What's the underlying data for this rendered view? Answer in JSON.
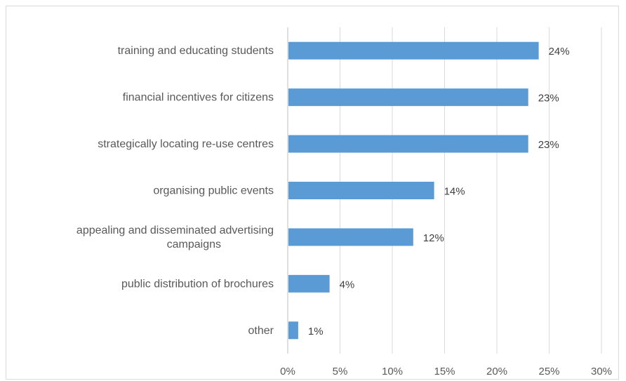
{
  "chart_data": {
    "type": "bar",
    "orientation": "horizontal",
    "title": "",
    "xlabel": "",
    "ylabel": "",
    "categories": [
      "training and educating students",
      "financial incentives for citizens",
      "strategically locating re-use centres",
      "organising public events",
      "appealing and disseminated advertising campaigns",
      "public distribution of brochures",
      "other"
    ],
    "category_lines": [
      [
        "training and educating students"
      ],
      [
        "financial incentives for citizens"
      ],
      [
        "strategically locating re-use centres"
      ],
      [
        "organising public events"
      ],
      [
        "appealing and disseminated advertising",
        "campaigns"
      ],
      [
        "public distribution of brochures"
      ],
      [
        "other"
      ]
    ],
    "values": [
      24,
      23,
      23,
      14,
      12,
      4,
      1
    ],
    "data_labels": [
      "24%",
      "23%",
      "23%",
      "14%",
      "12%",
      "4%",
      "1%"
    ],
    "xlim": [
      0,
      30
    ],
    "xticks": [
      0,
      5,
      10,
      15,
      20,
      25,
      30
    ],
    "xtick_labels": [
      "0%",
      "5%",
      "10%",
      "15%",
      "20%",
      "25%",
      "30%"
    ],
    "grid": true,
    "legend": "none",
    "bar_color": "#5b9bd5",
    "bar_value_px_note": ""
  }
}
